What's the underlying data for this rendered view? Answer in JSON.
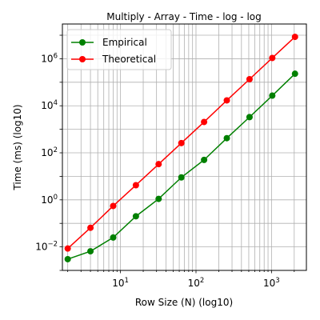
{
  "chart_data": {
    "type": "line",
    "title": "Multiply - Array - Time - log - log",
    "xlabel": "Row Size (N) (log10)",
    "ylabel": "Time (ms) (log10)",
    "xscale": "log",
    "yscale": "log",
    "xlim": [
      1.7,
      2900
    ],
    "ylim": [
      0.001,
      30000000
    ],
    "grid": true,
    "legend_position": "top-left",
    "x_ticks": [
      {
        "value": 10,
        "base": "10",
        "exp": "1"
      },
      {
        "value": 100,
        "base": "10",
        "exp": "2"
      },
      {
        "value": 1000,
        "base": "10",
        "exp": "3"
      }
    ],
    "y_ticks": [
      {
        "value": 0.01,
        "base": "10",
        "exp": "−2"
      },
      {
        "value": 1,
        "base": "10",
        "exp": "0"
      },
      {
        "value": 100,
        "base": "10",
        "exp": "2"
      },
      {
        "value": 10000,
        "base": "10",
        "exp": "4"
      },
      {
        "value": 1000000,
        "base": "10",
        "exp": "6"
      }
    ],
    "x": [
      2,
      4,
      8,
      16,
      32,
      64,
      128,
      256,
      512,
      1024,
      2048
    ],
    "series": [
      {
        "name": "Empirical",
        "color": "#008000",
        "marker": "circle",
        "values": [
          0.003,
          0.0065,
          0.025,
          0.2,
          1.1,
          9,
          50,
          420,
          3300,
          27000,
          230000
        ]
      },
      {
        "name": "Theoretical",
        "color": "#ff0000",
        "marker": "circle",
        "values": [
          0.0085,
          0.065,
          0.55,
          4.2,
          33,
          260,
          2050,
          17000,
          135000,
          1080000,
          8500000
        ]
      }
    ]
  }
}
